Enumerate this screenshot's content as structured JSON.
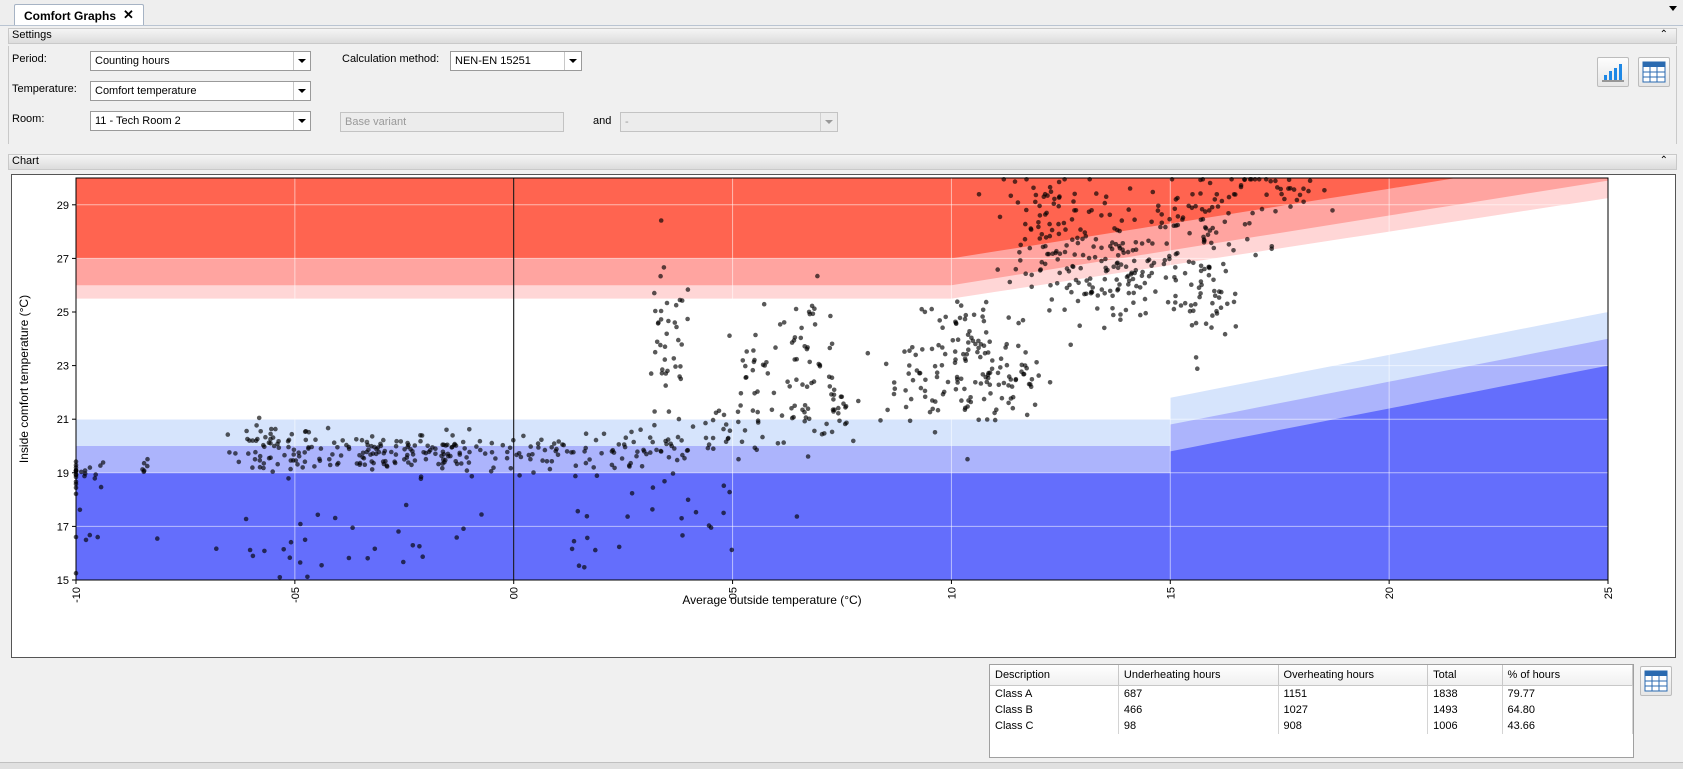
{
  "tab": {
    "title": "Comfort Graphs",
    "close_glyph": "✕"
  },
  "settings": {
    "header": "Settings",
    "collapse_glyph": "⌃",
    "period_label": "Period:",
    "period_value": "Counting hours",
    "calc_label": "Calculation method:",
    "calc_value": "NEN-EN 15251",
    "temperature_label": "Temperature:",
    "temperature_value": "Comfort temperature",
    "room_label": "Room:",
    "room_value": "11 - Tech Room 2",
    "variant_value": "Base variant",
    "and_label": "and",
    "and_value": "-"
  },
  "chart": {
    "header": "Chart",
    "collapse_glyph": "⌃"
  },
  "chart_data": {
    "type": "scatter",
    "xlabel": "Average outside temperature (°C)",
    "ylabel": "Inside comfort temperature (°C)",
    "xlim": [
      -10,
      25
    ],
    "ylim": [
      15,
      30
    ],
    "xticks": [
      "-10",
      "-05",
      "00",
      "05",
      "10",
      "15",
      "20",
      "25"
    ],
    "xtick_values": [
      -10,
      -5,
      0,
      5,
      10,
      15,
      20,
      25
    ],
    "yticks": [
      15,
      17,
      19,
      21,
      23,
      25,
      27,
      29
    ],
    "grid": true,
    "colors": {
      "over_dark": "#ff6450",
      "over_mid": "#ffa4a0",
      "over_light": "#ffd6d6",
      "under_light": "#d6e4fc",
      "under_mid": "#acb4fc",
      "under_dark": "#646efc",
      "points": "#000000"
    },
    "clusters": [
      {
        "x": -10,
        "y": 19.0,
        "n": 24,
        "sx": 0.5,
        "sy": 0.3
      },
      {
        "x": -9.8,
        "y": 16.2,
        "n": 6,
        "sx": 0.3,
        "sy": 0.7
      },
      {
        "x": -8.4,
        "y": 19.2,
        "n": 6,
        "sx": 0.05,
        "sy": 0.2
      },
      {
        "x": -5.5,
        "y": 19.8,
        "n": 60,
        "sx": 0.5,
        "sy": 0.5
      },
      {
        "x": -3.3,
        "y": 19.8,
        "n": 80,
        "sx": 0.8,
        "sy": 0.4
      },
      {
        "x": -1.5,
        "y": 19.7,
        "n": 60,
        "sx": 0.6,
        "sy": 0.4
      },
      {
        "x": -3.8,
        "y": 16.4,
        "n": 30,
        "sx": 1.5,
        "sy": 0.6
      },
      {
        "x": 0.8,
        "y": 19.8,
        "n": 40,
        "sx": 0.9,
        "sy": 0.3
      },
      {
        "x": 1.3,
        "y": 16.4,
        "n": 8,
        "sx": 0.6,
        "sy": 0.5
      },
      {
        "x": 3.0,
        "y": 19.8,
        "n": 50,
        "sx": 0.8,
        "sy": 0.5
      },
      {
        "x": 3.5,
        "y": 23.5,
        "n": 40,
        "sx": 0.3,
        "sy": 1.5
      },
      {
        "x": 3.8,
        "y": 17.2,
        "n": 15,
        "sx": 0.8,
        "sy": 0.7
      },
      {
        "x": 5.0,
        "y": 20.5,
        "n": 30,
        "sx": 0.6,
        "sy": 0.6
      },
      {
        "x": 5.5,
        "y": 22.8,
        "n": 20,
        "sx": 0.2,
        "sy": 1.3
      },
      {
        "x": 6.7,
        "y": 23.0,
        "n": 60,
        "sx": 0.4,
        "sy": 1.4
      },
      {
        "x": 7.4,
        "y": 21.2,
        "n": 20,
        "sx": 0.15,
        "sy": 0.6
      },
      {
        "x": 9.2,
        "y": 22.3,
        "n": 40,
        "sx": 0.7,
        "sy": 0.8
      },
      {
        "x": 10.5,
        "y": 23.5,
        "n": 80,
        "sx": 0.7,
        "sy": 1.4
      },
      {
        "x": 11.3,
        "y": 22.3,
        "n": 40,
        "sx": 0.4,
        "sy": 0.8
      },
      {
        "x": 12.2,
        "y": 28.2,
        "n": 90,
        "sx": 0.6,
        "sy": 1.1
      },
      {
        "x": 13.0,
        "y": 26.0,
        "n": 50,
        "sx": 0.6,
        "sy": 1.0
      },
      {
        "x": 14.3,
        "y": 26.5,
        "n": 70,
        "sx": 0.6,
        "sy": 1.0
      },
      {
        "x": 15.6,
        "y": 28.4,
        "n": 80,
        "sx": 0.8,
        "sy": 1.0
      },
      {
        "x": 15.8,
        "y": 25.4,
        "n": 40,
        "sx": 0.4,
        "sy": 0.8
      },
      {
        "x": 17.8,
        "y": 29.4,
        "n": 30,
        "sx": 0.8,
        "sy": 0.4
      }
    ]
  },
  "results": {
    "columns": [
      "Description",
      "Underheating hours",
      "Overheating hours",
      "Total",
      "% of hours"
    ],
    "rows": [
      [
        "Class A",
        "687",
        "1151",
        "1838",
        "79.77"
      ],
      [
        "Class B",
        "466",
        "1027",
        "1493",
        "64.80"
      ],
      [
        "Class C",
        "98",
        "908",
        "1006",
        "43.66"
      ]
    ]
  },
  "icons": {
    "chart_toggle": "bar-chart-icon",
    "table_toggle": "table-icon",
    "results_table_toggle": "table-icon"
  }
}
